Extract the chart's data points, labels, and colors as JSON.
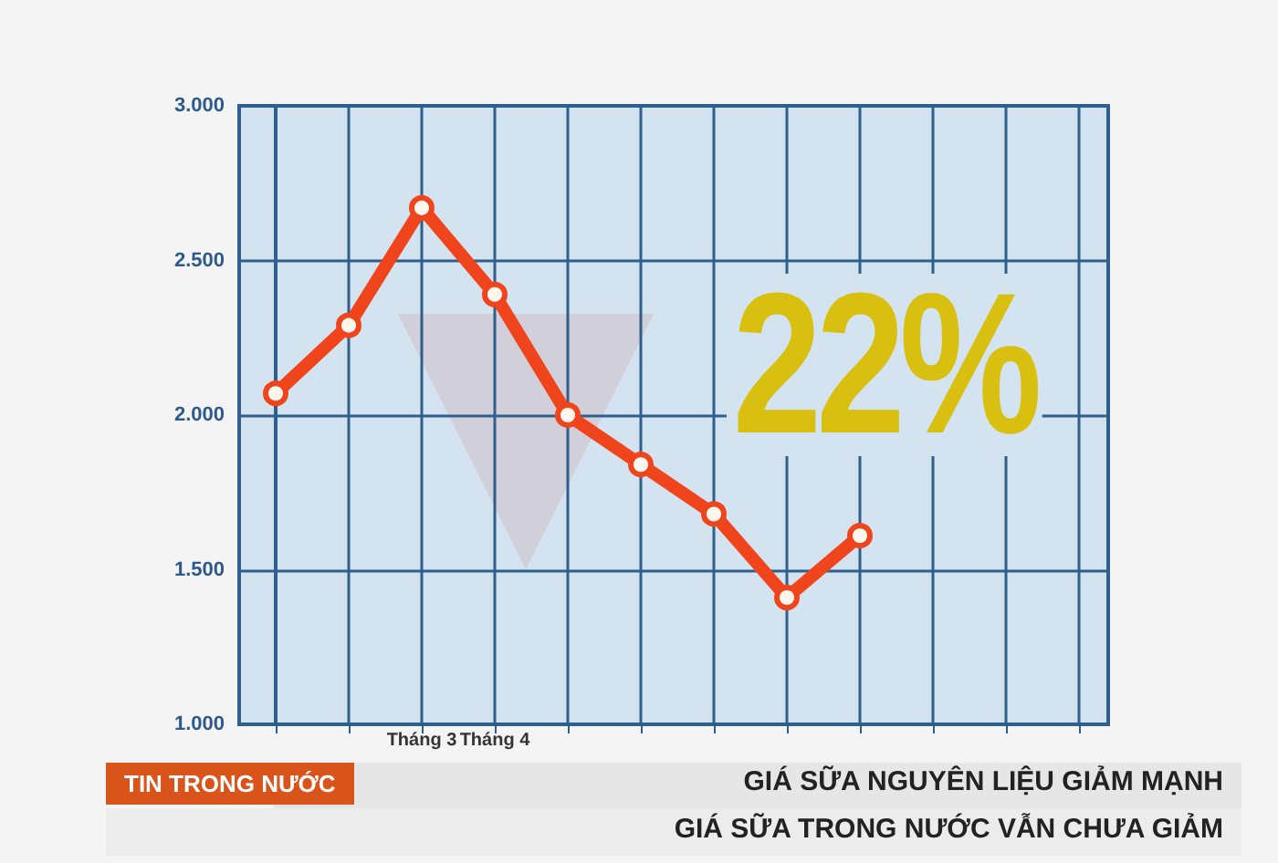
{
  "chart_data": {
    "type": "line",
    "categories": [
      null,
      null,
      "Tháng 3",
      "Tháng 4",
      null,
      null,
      null,
      null,
      null,
      null,
      null,
      null
    ],
    "series": [
      {
        "color": "#f0451c",
        "values": [
          2070,
          2290,
          2670,
          2390,
          2000,
          1840,
          1680,
          1410,
          1610,
          null,
          null,
          null
        ]
      }
    ],
    "ylim": [
      1000,
      3000
    ],
    "yticks": [
      {
        "value": 1000,
        "label": "1.000"
      },
      {
        "value": 1500,
        "label": "1.500"
      },
      {
        "value": 2000,
        "label": "2.000"
      },
      {
        "value": 2500,
        "label": "2.500"
      },
      {
        "value": 3000,
        "label": "3.000"
      }
    ],
    "grid": true,
    "marker": "circle",
    "line_style": "solid",
    "annotations": [
      "22%",
      "TIN TRONG NƯỚC",
      "GIÁ SỮA NGUYÊN LIỆU GIẢM MẠNH",
      "GIÁ SỮA TRONG NƯỚC VẪN CHƯA GIẢM"
    ]
  }
}
